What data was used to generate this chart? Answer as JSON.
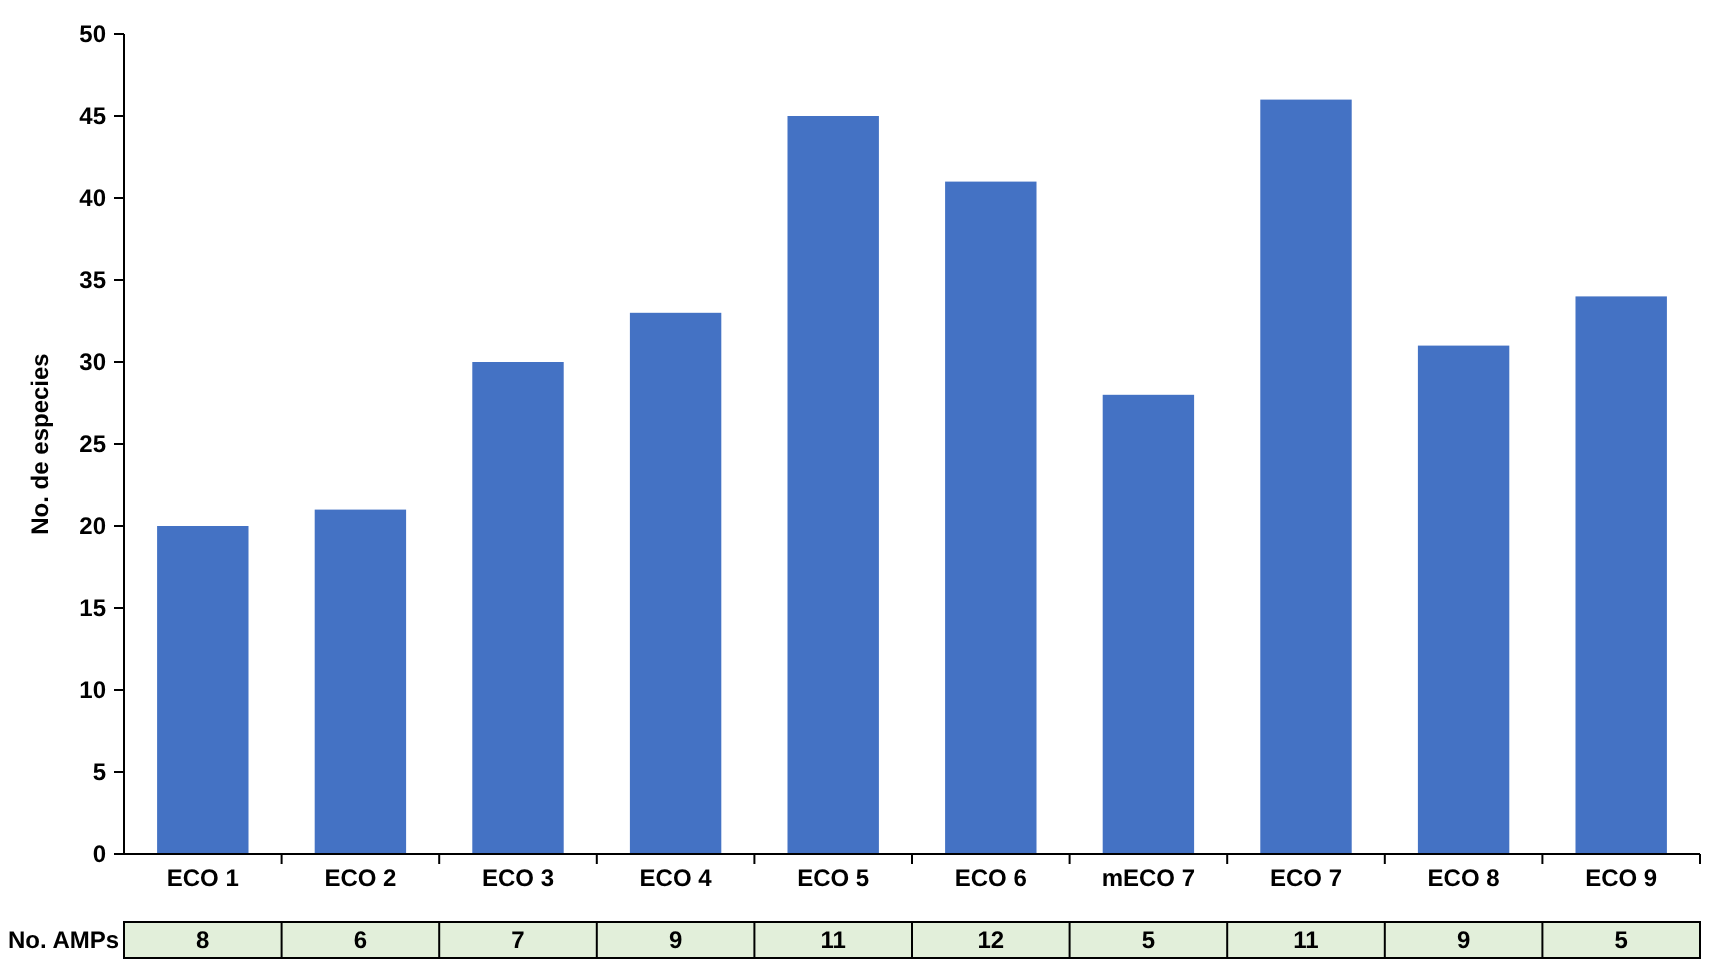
{
  "chart_data": {
    "type": "bar",
    "ylabel": "No. de especies",
    "categories": [
      "ECO 1",
      "ECO 2",
      "ECO 3",
      "ECO 4",
      "ECO 5",
      "ECO 6",
      "mECO 7",
      "ECO 7",
      "ECO 8",
      "ECO 9"
    ],
    "values": [
      20,
      21,
      30,
      33,
      45,
      41,
      28,
      46,
      31,
      34
    ],
    "color": "#4472c4",
    "ylim": [
      0,
      50
    ],
    "yticks": [
      0,
      5,
      10,
      15,
      20,
      25,
      30,
      35,
      40,
      45,
      50
    ],
    "grid": false,
    "annotations": [
      "No. AMPs",
      "8",
      "6",
      "7",
      "9",
      "11",
      "12",
      "5",
      "11",
      "9",
      "5"
    ]
  }
}
